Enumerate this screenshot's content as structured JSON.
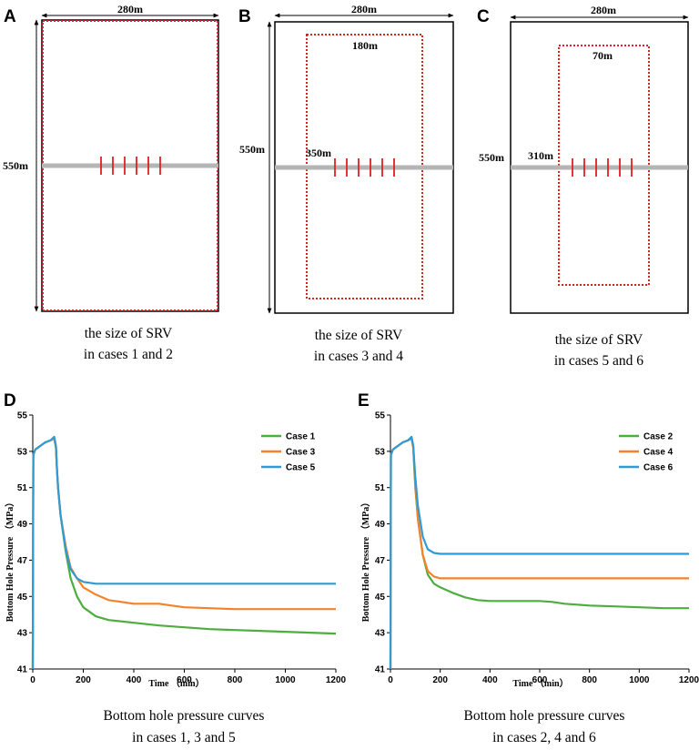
{
  "panels_top": [
    {
      "label": "A",
      "width_label": "280m",
      "height_label": "550m",
      "inner_width_label": "",
      "inner_offset_label": "",
      "caption": [
        "the size of SRV",
        "in cases 1 and 2"
      ]
    },
    {
      "label": "B",
      "width_label": "280m",
      "height_label": "550m",
      "inner_width_label": "180m",
      "inner_offset_label": "350m",
      "caption": [
        "the size of SRV",
        "in cases 3 and 4"
      ]
    },
    {
      "label": "C",
      "width_label": "280m",
      "height_label": "550m",
      "inner_width_label": "70m",
      "inner_offset_label": "310m",
      "caption": [
        "the size of SRV",
        "in cases 5 and 6"
      ]
    }
  ],
  "colors": {
    "green": "#4cae3c",
    "orange": "#f5822a",
    "blue": "#2f9bd6",
    "srv": "#e02020",
    "well": "#b5b5b5"
  },
  "chart_data": [
    {
      "label": "D",
      "type": "line",
      "title": "",
      "xlabel": "Time （min）",
      "ylabel": "Bottom Hole Pressure （MPa）",
      "xlim": [
        0,
        1200
      ],
      "ylim": [
        41,
        55
      ],
      "xticks": [
        0,
        200,
        400,
        600,
        800,
        1000,
        1200
      ],
      "yticks": [
        41,
        43,
        45,
        47,
        49,
        51,
        53,
        55
      ],
      "caption": [
        "Bottom hole pressure curves",
        "in cases 1, 3 and 5"
      ],
      "series": [
        {
          "name": "Case 1",
          "color": "green",
          "x": [
            0,
            2,
            10,
            30,
            50,
            70,
            85,
            92,
            96,
            100,
            110,
            130,
            150,
            175,
            200,
            250,
            300,
            400,
            500,
            600,
            700,
            800,
            900,
            1000,
            1100,
            1200
          ],
          "y": [
            41,
            52.8,
            53.1,
            53.3,
            53.5,
            53.6,
            53.7,
            53.2,
            52.0,
            51.0,
            49.5,
            47.5,
            46.0,
            45.0,
            44.4,
            43.9,
            43.7,
            43.55,
            43.4,
            43.3,
            43.2,
            43.15,
            43.1,
            43.05,
            43.0,
            42.95
          ]
        },
        {
          "name": "Case 3",
          "color": "orange",
          "x": [
            0,
            2,
            10,
            30,
            50,
            70,
            85,
            92,
            96,
            100,
            110,
            130,
            150,
            175,
            200,
            250,
            300,
            400,
            500,
            550,
            600,
            700,
            800,
            900,
            1000,
            1100,
            1200
          ],
          "y": [
            41,
            52.8,
            53.1,
            53.3,
            53.5,
            53.6,
            53.7,
            53.2,
            52.0,
            51.0,
            49.5,
            47.8,
            46.6,
            46.0,
            45.5,
            45.1,
            44.8,
            44.6,
            44.6,
            44.5,
            44.4,
            44.35,
            44.3,
            44.3,
            44.3,
            44.3,
            44.3
          ]
        },
        {
          "name": "Case 5",
          "color": "blue",
          "x": [
            0,
            2,
            10,
            30,
            50,
            70,
            85,
            92,
            96,
            100,
            110,
            130,
            150,
            175,
            200,
            250,
            300,
            400,
            600,
            800,
            1000,
            1200
          ],
          "y": [
            41,
            52.8,
            53.1,
            53.3,
            53.5,
            53.6,
            53.8,
            53.3,
            52.0,
            51.0,
            49.5,
            47.6,
            46.5,
            46.0,
            45.8,
            45.7,
            45.7,
            45.7,
            45.7,
            45.7,
            45.7,
            45.7
          ]
        }
      ]
    },
    {
      "label": "E",
      "type": "line",
      "title": "",
      "xlabel": "Time （min）",
      "ylabel": "Bottom Hole Pressure （MPa）",
      "xlim": [
        0,
        1200
      ],
      "ylim": [
        41,
        55
      ],
      "xticks": [
        0,
        200,
        400,
        600,
        800,
        1000,
        1200
      ],
      "yticks": [
        41,
        43,
        45,
        47,
        49,
        51,
        53,
        55
      ],
      "caption": [
        "Bottom hole pressure curves",
        "in cases 2, 4 and 6"
      ],
      "series": [
        {
          "name": "Case 2",
          "color": "green",
          "x": [
            0,
            2,
            10,
            30,
            50,
            70,
            85,
            92,
            96,
            100,
            110,
            130,
            150,
            175,
            200,
            250,
            300,
            350,
            400,
            500,
            600,
            650,
            700,
            800,
            900,
            1000,
            1100,
            1200
          ],
          "y": [
            41,
            52.8,
            53.1,
            53.3,
            53.5,
            53.6,
            53.7,
            53.2,
            52.0,
            51.0,
            49.3,
            47.3,
            46.2,
            45.7,
            45.5,
            45.2,
            44.95,
            44.8,
            44.75,
            44.75,
            44.75,
            44.7,
            44.6,
            44.5,
            44.45,
            44.4,
            44.35,
            44.35
          ]
        },
        {
          "name": "Case 4",
          "color": "orange",
          "x": [
            0,
            2,
            10,
            30,
            50,
            70,
            85,
            92,
            96,
            100,
            110,
            130,
            150,
            175,
            200,
            250,
            400,
            600,
            800,
            1000,
            1200
          ],
          "y": [
            41,
            52.8,
            53.1,
            53.3,
            53.5,
            53.6,
            53.7,
            53.2,
            52.2,
            51.2,
            49.3,
            47.3,
            46.4,
            46.1,
            46.0,
            46.0,
            46.0,
            46.0,
            46.0,
            46.0,
            46.0
          ]
        },
        {
          "name": "Case 6",
          "color": "blue",
          "x": [
            0,
            2,
            10,
            30,
            50,
            70,
            85,
            92,
            96,
            100,
            110,
            130,
            150,
            175,
            200,
            250,
            400,
            600,
            800,
            1000,
            1200
          ],
          "y": [
            41,
            52.8,
            53.1,
            53.3,
            53.5,
            53.6,
            53.8,
            53.3,
            52.4,
            51.6,
            50.0,
            48.3,
            47.6,
            47.4,
            47.35,
            47.35,
            47.35,
            47.35,
            47.35,
            47.35,
            47.35
          ]
        }
      ]
    }
  ]
}
